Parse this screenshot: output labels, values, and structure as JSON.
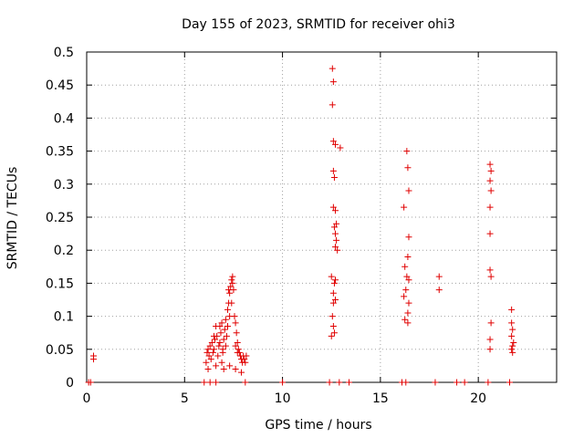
{
  "chart_data": {
    "type": "scatter",
    "title": "Day 155 of 2023, SRMTID for receiver ohi3",
    "xlabel": "GPS time / hours",
    "ylabel": "SRMTID / TECUs",
    "xlim": [
      0,
      24
    ],
    "ylim": [
      0,
      0.5
    ],
    "grid": true,
    "marker": "plus",
    "color": "#e00000",
    "x_ticks": [
      0,
      5,
      10,
      15,
      20
    ],
    "x_tick_labels": [
      "0",
      "5",
      "10",
      "15",
      "20"
    ],
    "y_ticks": [
      0,
      0.05,
      0.1,
      0.15,
      0.2,
      0.25,
      0.3,
      0.35,
      0.4,
      0.45,
      0.5
    ],
    "y_tick_labels": [
      "0",
      "0.05",
      "0.1",
      "0.15",
      "0.2",
      "0.25",
      "0.3",
      "0.35",
      "0.4",
      "0.45",
      "0.5"
    ],
    "series": [
      {
        "name": "SRMTID",
        "points": [
          [
            0.1,
            0.0
          ],
          [
            0.2,
            0.0
          ],
          [
            0.35,
            0.04
          ],
          [
            0.35,
            0.035
          ],
          [
            6.0,
            0.0
          ],
          [
            6.3,
            0.0
          ],
          [
            6.6,
            0.0
          ],
          [
            8.1,
            0.0
          ],
          [
            6.1,
            0.03
          ],
          [
            6.15,
            0.045
          ],
          [
            6.2,
            0.05
          ],
          [
            6.25,
            0.04
          ],
          [
            6.3,
            0.055
          ],
          [
            6.35,
            0.035
          ],
          [
            6.4,
            0.06
          ],
          [
            6.45,
            0.045
          ],
          [
            6.5,
            0.05
          ],
          [
            6.55,
            0.065
          ],
          [
            6.6,
            0.085
          ],
          [
            6.65,
            0.07
          ],
          [
            6.7,
            0.04
          ],
          [
            6.75,
            0.055
          ],
          [
            6.8,
            0.06
          ],
          [
            6.85,
            0.075
          ],
          [
            6.9,
            0.09
          ],
          [
            6.95,
            0.05
          ],
          [
            7.0,
            0.065
          ],
          [
            7.05,
            0.08
          ],
          [
            7.1,
            0.095
          ],
          [
            7.15,
            0.07
          ],
          [
            7.2,
            0.11
          ],
          [
            7.25,
            0.12
          ],
          [
            7.3,
            0.135
          ],
          [
            7.35,
            0.145
          ],
          [
            7.4,
            0.155
          ],
          [
            7.45,
            0.16
          ],
          [
            7.5,
            0.14
          ],
          [
            7.55,
            0.1
          ],
          [
            7.6,
            0.09
          ],
          [
            7.65,
            0.075
          ],
          [
            7.7,
            0.06
          ],
          [
            7.75,
            0.05
          ],
          [
            7.8,
            0.045
          ],
          [
            7.85,
            0.04
          ],
          [
            7.9,
            0.035
          ],
          [
            7.95,
            0.03
          ],
          [
            8.0,
            0.04
          ],
          [
            8.05,
            0.035
          ],
          [
            8.1,
            0.03
          ],
          [
            8.15,
            0.04
          ],
          [
            6.2,
            0.02
          ],
          [
            6.6,
            0.025
          ],
          [
            6.9,
            0.03
          ],
          [
            7.0,
            0.02
          ],
          [
            7.3,
            0.025
          ],
          [
            7.6,
            0.02
          ],
          [
            7.9,
            0.015
          ],
          [
            6.5,
            0.07
          ],
          [
            6.8,
            0.085
          ],
          [
            7.2,
            0.085
          ],
          [
            7.4,
            0.12
          ],
          [
            7.3,
            0.1
          ],
          [
            7.45,
            0.15
          ],
          [
            7.25,
            0.14
          ],
          [
            7.6,
            0.055
          ],
          [
            7.7,
            0.045
          ],
          [
            7.1,
            0.055
          ],
          [
            6.95,
            0.045
          ],
          [
            12.55,
            0.475
          ],
          [
            12.6,
            0.455
          ],
          [
            12.55,
            0.42
          ],
          [
            12.6,
            0.365
          ],
          [
            12.7,
            0.36
          ],
          [
            12.95,
            0.355
          ],
          [
            12.6,
            0.32
          ],
          [
            12.65,
            0.31
          ],
          [
            12.6,
            0.265
          ],
          [
            12.7,
            0.26
          ],
          [
            12.75,
            0.24
          ],
          [
            12.65,
            0.235
          ],
          [
            12.7,
            0.225
          ],
          [
            12.75,
            0.215
          ],
          [
            12.7,
            0.205
          ],
          [
            12.8,
            0.2
          ],
          [
            12.5,
            0.16
          ],
          [
            12.7,
            0.155
          ],
          [
            12.65,
            0.15
          ],
          [
            12.6,
            0.135
          ],
          [
            12.7,
            0.125
          ],
          [
            12.6,
            0.12
          ],
          [
            12.55,
            0.1
          ],
          [
            12.6,
            0.085
          ],
          [
            12.65,
            0.075
          ],
          [
            12.5,
            0.07
          ],
          [
            12.4,
            0.0
          ],
          [
            12.9,
            0.0
          ],
          [
            13.4,
            0.0
          ],
          [
            10.0,
            0.0
          ],
          [
            16.35,
            0.35
          ],
          [
            16.4,
            0.325
          ],
          [
            16.45,
            0.29
          ],
          [
            16.2,
            0.265
          ],
          [
            16.45,
            0.22
          ],
          [
            16.4,
            0.19
          ],
          [
            16.25,
            0.175
          ],
          [
            16.35,
            0.16
          ],
          [
            16.45,
            0.155
          ],
          [
            16.3,
            0.14
          ],
          [
            16.2,
            0.13
          ],
          [
            16.45,
            0.12
          ],
          [
            16.4,
            0.105
          ],
          [
            16.25,
            0.095
          ],
          [
            16.4,
            0.09
          ],
          [
            18.0,
            0.16
          ],
          [
            18.0,
            0.14
          ],
          [
            16.1,
            0.0
          ],
          [
            16.3,
            0.0
          ],
          [
            17.8,
            0.0
          ],
          [
            18.9,
            0.0
          ],
          [
            19.3,
            0.0
          ],
          [
            20.6,
            0.33
          ],
          [
            20.65,
            0.32
          ],
          [
            20.6,
            0.305
          ],
          [
            20.65,
            0.29
          ],
          [
            20.6,
            0.265
          ],
          [
            20.6,
            0.225
          ],
          [
            20.6,
            0.17
          ],
          [
            20.65,
            0.16
          ],
          [
            20.65,
            0.09
          ],
          [
            20.6,
            0.065
          ],
          [
            20.6,
            0.05
          ],
          [
            20.5,
            0.0
          ],
          [
            21.6,
            0.0
          ],
          [
            21.7,
            0.11
          ],
          [
            21.7,
            0.09
          ],
          [
            21.75,
            0.08
          ],
          [
            21.7,
            0.07
          ],
          [
            21.8,
            0.06
          ],
          [
            21.75,
            0.055
          ],
          [
            21.7,
            0.05
          ],
          [
            21.75,
            0.045
          ]
        ]
      }
    ]
  }
}
